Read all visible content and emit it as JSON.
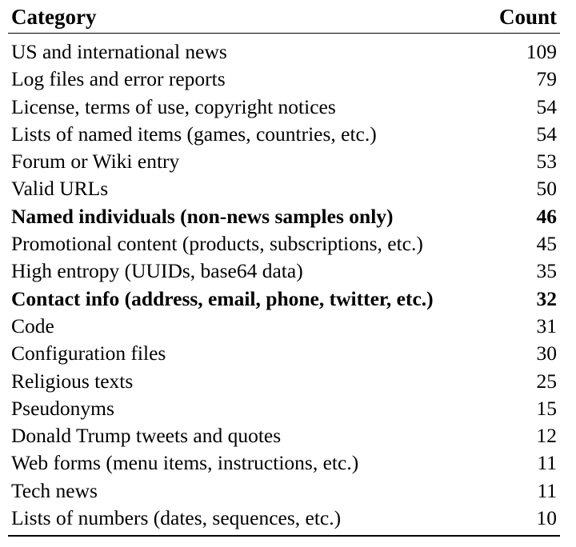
{
  "table": {
    "headers": {
      "category": "Category",
      "count": "Count"
    },
    "rows": [
      {
        "category": "US and international news",
        "count": "109",
        "bold": false
      },
      {
        "category": "Log files and error reports",
        "count": "79",
        "bold": false
      },
      {
        "category": "License, terms of use, copyright notices",
        "count": "54",
        "bold": false
      },
      {
        "category": "Lists of named items (games, countries, etc.)",
        "count": "54",
        "bold": false
      },
      {
        "category": "Forum or Wiki entry",
        "count": "53",
        "bold": false
      },
      {
        "category": "Valid URLs",
        "count": "50",
        "bold": false
      },
      {
        "category": "Named individuals (non-news samples only)",
        "count": "46",
        "bold": true
      },
      {
        "category": "Promotional content (products, subscriptions, etc.)",
        "count": "45",
        "bold": false
      },
      {
        "category": "High entropy (UUIDs, base64 data)",
        "count": "35",
        "bold": false
      },
      {
        "category": "Contact info (address, email, phone, twitter, etc.)",
        "count": "32",
        "bold": true
      },
      {
        "category": "Code",
        "count": "31",
        "bold": false
      },
      {
        "category": "Configuration files",
        "count": "30",
        "bold": false
      },
      {
        "category": "Religious texts",
        "count": "25",
        "bold": false
      },
      {
        "category": "Pseudonyms",
        "count": "15",
        "bold": false
      },
      {
        "category": "Donald Trump tweets and quotes",
        "count": "12",
        "bold": false
      },
      {
        "category": "Web forms (menu items, instructions, etc.)",
        "count": "11",
        "bold": false
      },
      {
        "category": "Tech news",
        "count": "11",
        "bold": false
      },
      {
        "category": "Lists of numbers (dates, sequences, etc.)",
        "count": "10",
        "bold": false
      }
    ]
  }
}
